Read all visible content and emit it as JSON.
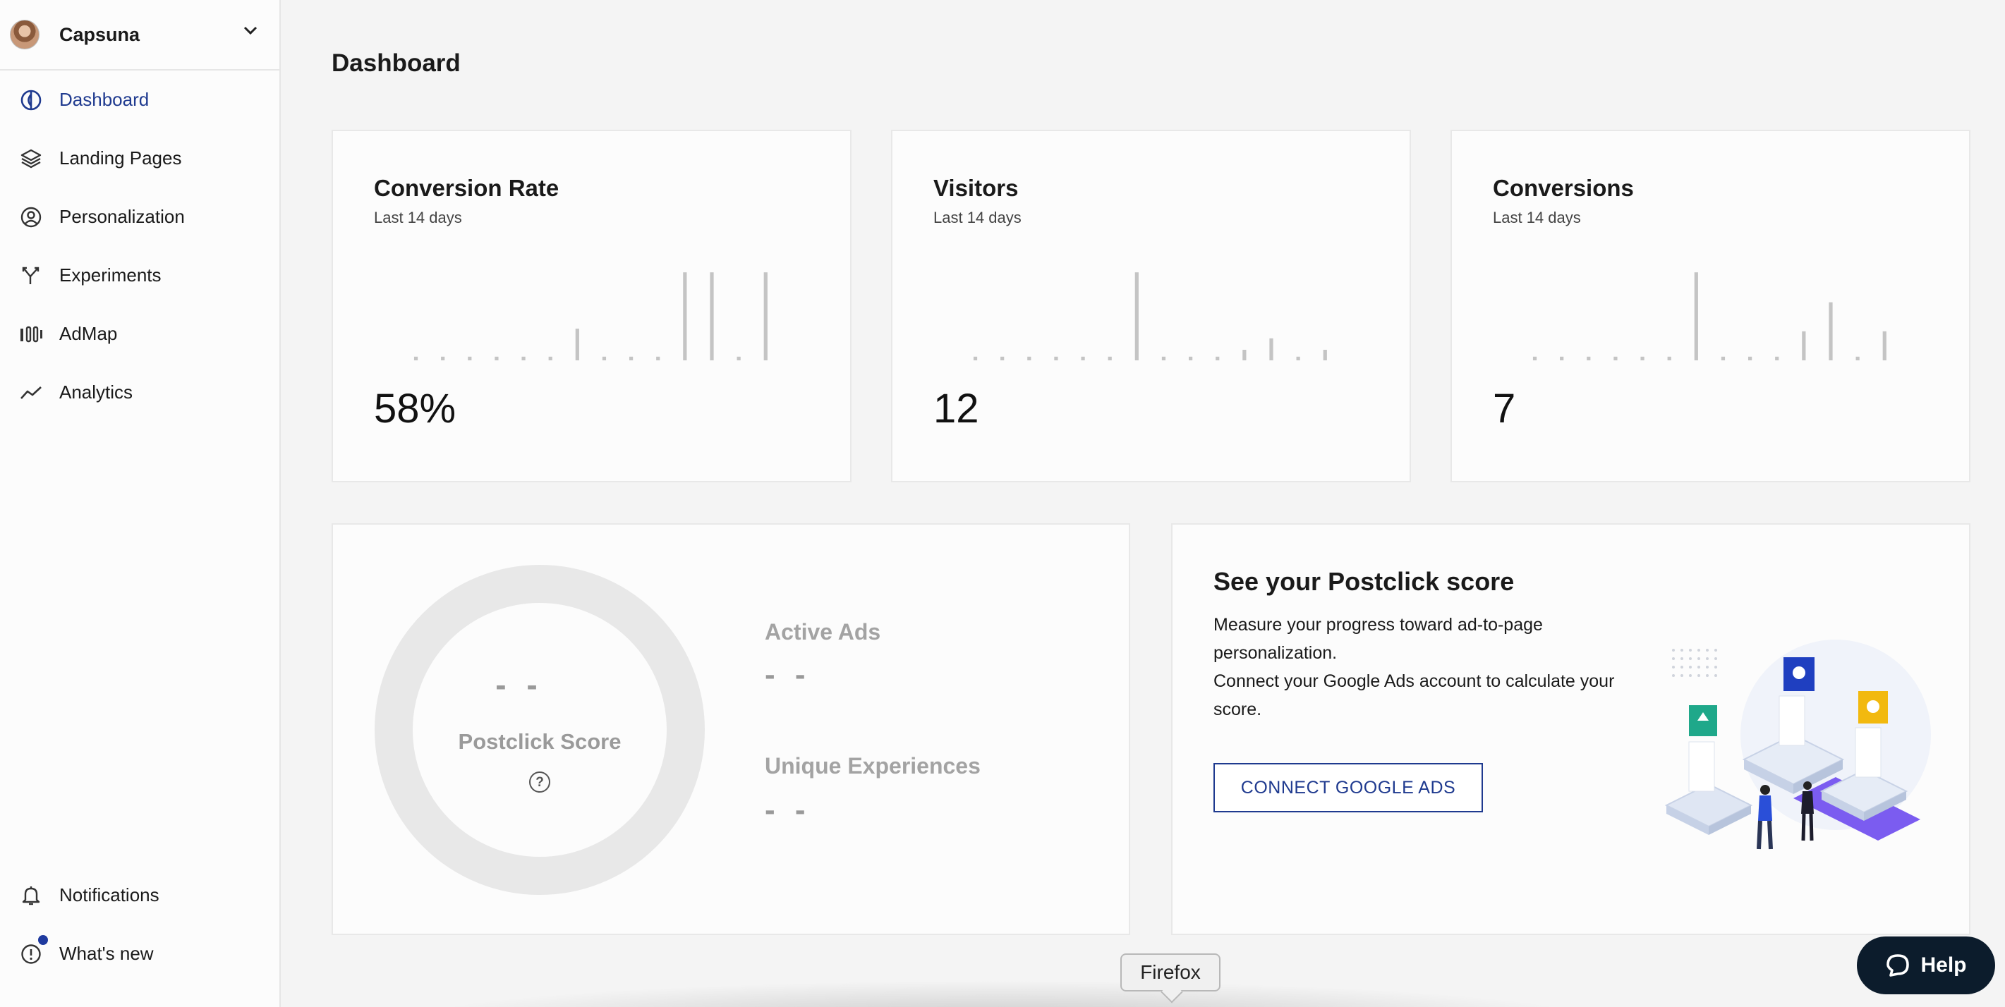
{
  "workspace": {
    "name": "Capsuna"
  },
  "nav": {
    "items": [
      {
        "label": "Dashboard",
        "icon": "dashboard-icon",
        "active": true
      },
      {
        "label": "Landing Pages",
        "icon": "layers-icon"
      },
      {
        "label": "Personalization",
        "icon": "user-circle-icon"
      },
      {
        "label": "Experiments",
        "icon": "split-icon"
      },
      {
        "label": "AdMap",
        "icon": "admap-icon"
      },
      {
        "label": "Analytics",
        "icon": "trend-icon"
      }
    ],
    "bottom": [
      {
        "label": "Notifications",
        "icon": "bell-icon"
      },
      {
        "label": "What's new",
        "icon": "alert-circle-icon"
      }
    ]
  },
  "page": {
    "title": "Dashboard"
  },
  "stats": [
    {
      "title": "Conversion Rate",
      "subtitle": "Last 14 days",
      "value": "58%",
      "bars": [
        0,
        0,
        0,
        0,
        0,
        0,
        0.36,
        0,
        0,
        0,
        1,
        1,
        0,
        1
      ]
    },
    {
      "title": "Visitors",
      "subtitle": "Last 14 days",
      "value": "12",
      "bars": [
        0,
        0,
        0,
        0,
        0,
        0,
        1,
        0,
        0,
        0,
        0.12,
        0.25,
        0,
        0.12
      ]
    },
    {
      "title": "Conversions",
      "subtitle": "Last 14 days",
      "value": "7",
      "bars": [
        0,
        0,
        0,
        0,
        0,
        0,
        1,
        0,
        0,
        0,
        0.33,
        0.66,
        0,
        0.33
      ]
    }
  ],
  "score": {
    "value": "- -",
    "label": "Postclick Score",
    "help": "?",
    "metrics": [
      {
        "label": "Active Ads",
        "value": "- -"
      },
      {
        "label": "Unique Experiences",
        "value": "- -"
      }
    ]
  },
  "postclick": {
    "title": "See your Postclick score",
    "line1": "Measure your progress toward ad-to-page personalization.",
    "line2": "Connect your Google Ads account to calculate your score.",
    "button": "CONNECT GOOGLE ADS"
  },
  "help": {
    "label": "Help"
  },
  "tooltip": {
    "label": "Firefox"
  },
  "colors": {
    "accent": "#1f3a8f",
    "bar": "#c4c4c4",
    "help_bg": "#0c1c2c"
  }
}
